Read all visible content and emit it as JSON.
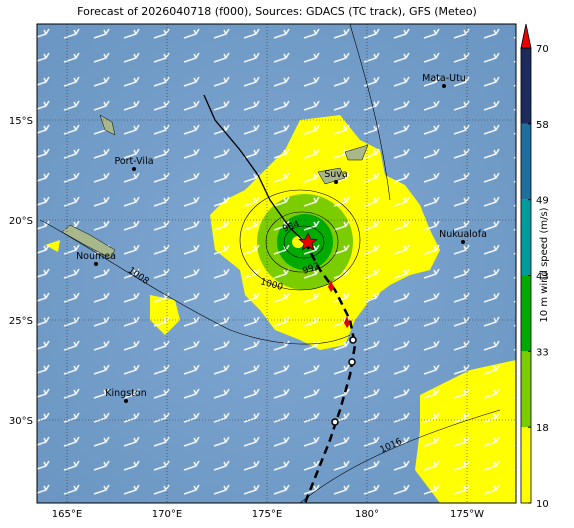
{
  "map": {
    "title": "Forecast of 2026040718 (f000), Sources: GDACS (TC track), GFS (Meteo)",
    "lonlim": [
      163.5,
      187.45
    ],
    "latlim": [
      -34.15,
      -10.2
    ],
    "lon_ticks": [
      {
        "value": 165,
        "label": "165°E"
      },
      {
        "value": 170,
        "label": "170°E"
      },
      {
        "value": 175,
        "label": "175°E"
      },
      {
        "value": 180,
        "label": "180°"
      },
      {
        "value": 185,
        "label": "175°W"
      }
    ],
    "lat_ticks": [
      {
        "value": -15,
        "label": "15°S"
      },
      {
        "value": -20,
        "label": "20°S"
      },
      {
        "value": -25,
        "label": "25°S"
      },
      {
        "value": -30,
        "label": "30°S"
      }
    ],
    "cities": [
      {
        "name": "Mata-Utu",
        "lon": 183.85,
        "lat": -13.3
      },
      {
        "name": "Suva",
        "lon": 178.45,
        "lat": -18.1
      },
      {
        "name": "Port-Vila",
        "lon": 168.35,
        "lat": -17.45
      },
      {
        "name": "Nukualofa",
        "lon": 184.8,
        "lat": -21.1
      },
      {
        "name": "Noumea",
        "lon": 166.45,
        "lat": -22.2
      },
      {
        "name": "Kingston",
        "lon": 167.95,
        "lat": -29.05
      }
    ],
    "contour_labels": [
      "1008",
      "1000",
      "992",
      "984",
      "1016"
    ],
    "colorbar": {
      "label": "10 m wind speed (m/s)",
      "ticks": [
        10,
        18,
        33,
        43,
        49,
        58,
        70
      ],
      "colors": [
        "#ffff00",
        "#7ccd00",
        "#00aa00",
        "#009b9b",
        "#1f6e9e",
        "#1c2b5c"
      ],
      "extend_color": "#e80000"
    }
  }
}
